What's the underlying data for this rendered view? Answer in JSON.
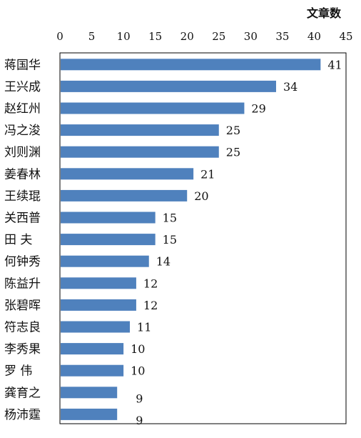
{
  "chart_data": {
    "type": "bar",
    "orientation": "horizontal",
    "title": "",
    "xlabel": "文章数",
    "ylabel": "",
    "xlim": [
      0,
      45
    ],
    "x_ticks": [
      0,
      5,
      10,
      15,
      20,
      25,
      30,
      35,
      40,
      45
    ],
    "x_axis_position": "top",
    "grid": false,
    "legend": "none",
    "bar_color": "#4F81BD",
    "categories": [
      "蒋国华",
      "王兴成",
      "赵红州",
      "冯之浚",
      "刘则渊",
      "姜春林",
      "王续琨",
      "关西普",
      "田 夫",
      "何钟秀",
      "陈益升",
      "张碧晖",
      "符志良",
      "李秀果",
      "罗 伟",
      "龚育之",
      "杨沛霆"
    ],
    "values": [
      41,
      34,
      29,
      25,
      25,
      21,
      20,
      15,
      15,
      14,
      12,
      12,
      11,
      10,
      10,
      9,
      9
    ]
  }
}
